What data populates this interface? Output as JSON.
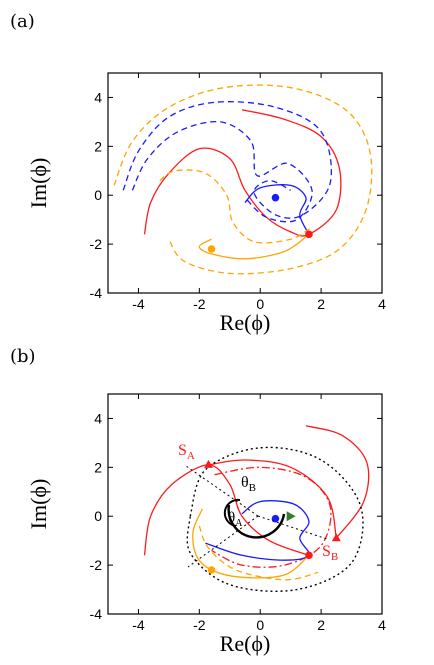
{
  "chart_data": [
    {
      "panel": "(a)",
      "type": "line",
      "xlabel": "Re(ϕ)",
      "ylabel": "Im(ϕ)",
      "xlim": [
        -5,
        4
      ],
      "ylim": [
        -4,
        5
      ],
      "xticks": [
        -4,
        -2,
        0,
        2,
        4
      ],
      "yticks": [
        -4,
        -2,
        0,
        2,
        4
      ],
      "colors": {
        "red": "#ff1a1a",
        "blue": "#1a1aff",
        "orange": "#ffa500"
      },
      "points": [
        {
          "color": "#1a1aff",
          "x": 0.5,
          "y": -0.1
        },
        {
          "color": "#ff1a1a",
          "x": 1.6,
          "y": -1.6
        },
        {
          "color": "#ffa500",
          "x": -1.6,
          "y": -2.2
        }
      ],
      "series": [
        {
          "color": "red",
          "style": "solid",
          "points": [
            [
              -3.8,
              -1.6
            ],
            [
              -3.6,
              -0.3
            ],
            [
              -3.0,
              0.9
            ],
            [
              -2.0,
              1.9
            ],
            [
              -1.0,
              1.5
            ],
            [
              -0.5,
              0.2
            ],
            [
              0.2,
              -0.9
            ],
            [
              1.0,
              -1.5
            ],
            [
              1.6,
              -1.6
            ],
            [
              2.5,
              -0.6
            ],
            [
              2.6,
              1.1
            ],
            [
              2.0,
              2.4
            ],
            [
              0.8,
              3.1
            ],
            [
              -0.6,
              3.5
            ]
          ]
        },
        {
          "color": "blue",
          "style": "dashed",
          "points": [
            [
              -4.5,
              0.2
            ],
            [
              -4.0,
              1.8
            ],
            [
              -3.0,
              3.2
            ],
            [
              -1.5,
              3.8
            ],
            [
              0.5,
              3.6
            ],
            [
              2.0,
              2.6
            ],
            [
              2.3,
              0.5
            ],
            [
              1.4,
              -0.8
            ],
            [
              0.5,
              -0.8
            ],
            [
              -0.2,
              0.1
            ],
            [
              0.3,
              0.6
            ],
            [
              1.0,
              0.2
            ]
          ]
        },
        {
          "color": "blue",
          "style": "dashed",
          "points": [
            [
              -4.2,
              0.2
            ],
            [
              -3.7,
              1.5
            ],
            [
              -2.7,
              2.6
            ],
            [
              -1.3,
              3.0
            ],
            [
              -0.3,
              2.2
            ],
            [
              -0.1,
              0.8
            ],
            [
              0.9,
              1.3
            ],
            [
              1.7,
              0.2
            ],
            [
              1.2,
              -1.0
            ],
            [
              0.2,
              -0.9
            ],
            [
              -0.5,
              -0.1
            ]
          ]
        },
        {
          "color": "blue",
          "style": "solid",
          "points": [
            [
              -0.5,
              -0.3
            ],
            [
              0.0,
              0.3
            ],
            [
              1.0,
              0.4
            ],
            [
              1.5,
              -0.1
            ],
            [
              1.3,
              -0.8
            ],
            [
              1.6,
              -1.6
            ]
          ]
        },
        {
          "color": "orange",
          "style": "dashed",
          "points": [
            [
              -4.8,
              0.4
            ],
            [
              -4.2,
              2.2
            ],
            [
              -3.0,
              3.6
            ],
            [
              -1.2,
              4.4
            ],
            [
              1.0,
              4.4
            ],
            [
              2.8,
              3.5
            ],
            [
              3.6,
              1.8
            ],
            [
              3.5,
              -0.5
            ],
            [
              2.6,
              -2.2
            ],
            [
              1.0,
              -3.0
            ],
            [
              -1.0,
              -3.2
            ],
            [
              -2.5,
              -2.7
            ],
            [
              -3.0,
              -1.8
            ]
          ]
        },
        {
          "color": "orange",
          "style": "dashed",
          "points": [
            [
              -3.3,
              0.6
            ],
            [
              -2.8,
              1.0
            ],
            [
              -1.8,
              0.9
            ],
            [
              -1.1,
              0.0
            ],
            [
              -0.9,
              -1.1
            ],
            [
              -0.2,
              -1.9
            ],
            [
              1.0,
              -1.8
            ],
            [
              1.7,
              -1.3
            ]
          ]
        },
        {
          "color": "orange",
          "style": "solid",
          "points": [
            [
              1.6,
              -1.6
            ],
            [
              0.8,
              -2.3
            ],
            [
              -0.5,
              -2.6
            ],
            [
              -1.6,
              -2.4
            ],
            [
              -2.0,
              -2.1
            ],
            [
              -1.6,
              -1.8
            ]
          ]
        }
      ]
    },
    {
      "panel": "(b)",
      "type": "line",
      "xlabel": "Re(ϕ)",
      "ylabel": "Im(ϕ)",
      "xlim": [
        -5,
        4
      ],
      "ylim": [
        -4,
        5
      ],
      "xticks": [
        -4,
        -2,
        0,
        2,
        4
      ],
      "yticks": [
        -4,
        -2,
        0,
        2,
        4
      ],
      "labels": {
        "sa": "S",
        "sa_sub": "A",
        "sb": "S",
        "sb_sub": "B",
        "theta_a": "θ",
        "theta_a_sub": "A",
        "theta_b": "θ",
        "theta_b_sub": "B"
      },
      "points": [
        {
          "name": "S_A",
          "color": "#ff1a1a",
          "x": -1.7,
          "y": 2.1
        },
        {
          "name": "S_B",
          "color": "#ff1a1a",
          "x": 2.5,
          "y": -0.9
        },
        {
          "color": "#1a1aff",
          "x": 0.5,
          "y": -0.1
        },
        {
          "color": "#ff1a1a",
          "x": 1.6,
          "y": -1.6
        },
        {
          "color": "#ffa500",
          "x": -1.6,
          "y": -2.2
        },
        {
          "color": "#3a7d2a",
          "x": 1.0,
          "y": 0.0
        }
      ],
      "series": [
        {
          "color": "red",
          "style": "solid",
          "points": [
            [
              -3.8,
              -1.6
            ],
            [
              -3.6,
              0.0
            ],
            [
              -2.9,
              1.3
            ],
            [
              -1.7,
              2.1
            ],
            [
              -1.0,
              1.3
            ],
            [
              -0.6,
              0.0
            ],
            [
              0.3,
              -1.0
            ],
            [
              1.6,
              -1.6
            ]
          ]
        },
        {
          "color": "red",
          "style": "solid",
          "points": [
            [
              2.5,
              -0.9
            ],
            [
              2.2,
              0.8
            ],
            [
              1.0,
              2.0
            ],
            [
              -0.5,
              2.3
            ],
            [
              -1.7,
              2.1
            ]
          ]
        },
        {
          "color": "red",
          "style": "solid",
          "points": [
            [
              2.5,
              -0.9
            ],
            [
              3.4,
              0.6
            ],
            [
              3.5,
              2.2
            ],
            [
              2.7,
              3.3
            ],
            [
              1.5,
              3.7
            ]
          ]
        },
        {
          "color": "red",
          "style": "dashdot",
          "points": [
            [
              -1.5,
              1.7
            ],
            [
              0.0,
              2.0
            ],
            [
              1.5,
              1.6
            ],
            [
              2.3,
              0.4
            ],
            [
              2.0,
              -1.2
            ],
            [
              0.8,
              -2.0
            ],
            [
              -0.6,
              -2.0
            ],
            [
              -1.6,
              -1.4
            ]
          ]
        },
        {
          "color": "black",
          "style": "dotted",
          "points": [
            [
              -2.3,
              0.0
            ],
            [
              -1.8,
              1.9
            ],
            [
              0.0,
              2.8
            ],
            [
              2.0,
              2.3
            ],
            [
              3.3,
              0.4
            ],
            [
              3.0,
              -1.9
            ],
            [
              1.2,
              -3.0
            ],
            [
              -1.0,
              -2.8
            ],
            [
              -2.3,
              -1.5
            ],
            [
              -2.3,
              0.0
            ]
          ]
        },
        {
          "color": "blue",
          "style": "solid",
          "points": [
            [
              -0.6,
              0.1
            ],
            [
              0.0,
              0.6
            ],
            [
              1.1,
              0.5
            ],
            [
              1.6,
              -0.2
            ],
            [
              1.3,
              -0.9
            ],
            [
              1.6,
              -1.6
            ],
            [
              0.8,
              -1.8
            ],
            [
              -0.6,
              -1.6
            ],
            [
              -1.8,
              -1.1
            ]
          ]
        },
        {
          "color": "orange",
          "style": "solid",
          "points": [
            [
              1.6,
              -1.6
            ],
            [
              0.8,
              -2.4
            ],
            [
              -0.6,
              -2.5
            ],
            [
              -1.6,
              -2.2
            ],
            [
              -2.1,
              -1.6
            ],
            [
              -2.2,
              -0.6
            ],
            [
              -1.9,
              0.3
            ]
          ]
        },
        {
          "color": "orange",
          "style": "dashed",
          "points": [
            [
              -2.0,
              -0.4
            ],
            [
              -1.7,
              -1.3
            ],
            [
              -0.8,
              -2.2
            ],
            [
              0.8,
              -2.6
            ],
            [
              1.9,
              -2.3
            ]
          ]
        }
      ]
    }
  ]
}
